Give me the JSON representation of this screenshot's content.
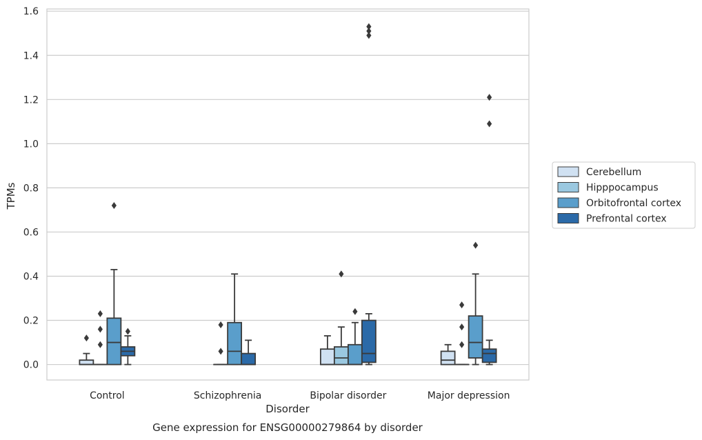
{
  "chart_data": {
    "type": "boxplot",
    "title": "Gene expression for ENSG00000279864 by disorder",
    "xlabel": "Disorder",
    "ylabel": "TPMs",
    "categories": [
      "Control",
      "Schizophrenia",
      "Bipolar disorder",
      "Major depression"
    ],
    "ylim": [
      -0.07,
      1.61
    ],
    "yticks": [
      0.0,
      0.2,
      0.4,
      0.6,
      0.8,
      1.0,
      1.2,
      1.4,
      1.6
    ],
    "ytick_labels": [
      "0.0",
      "0.2",
      "0.4",
      "0.6",
      "0.8",
      "1.0",
      "1.2",
      "1.4",
      "1.6"
    ],
    "grid": "horizontal",
    "legend_position": "right",
    "series": [
      {
        "name": "Cerebellum",
        "color": "#d0e1f2",
        "boxes": [
          {
            "q1": 0.0,
            "median": 0.0,
            "q3": 0.02,
            "whisker_low": 0.0,
            "whisker_high": 0.05,
            "outliers": [
              0.12
            ]
          },
          null,
          {
            "q1": 0.0,
            "median": 0.0,
            "q3": 0.07,
            "whisker_low": 0.0,
            "whisker_high": 0.13,
            "outliers": []
          },
          {
            "q1": 0.0,
            "median": 0.02,
            "q3": 0.06,
            "whisker_low": 0.0,
            "whisker_high": 0.09,
            "outliers": []
          }
        ]
      },
      {
        "name": "Hipppocampus",
        "color": "#9ac8e0",
        "boxes": [
          {
            "q1": 0.0,
            "median": 0.0,
            "q3": 0.0,
            "whisker_low": 0.0,
            "whisker_high": 0.0,
            "outliers": [
              0.09,
              0.16,
              0.23
            ]
          },
          {
            "q1": 0.0,
            "median": 0.0,
            "q3": 0.0,
            "whisker_low": 0.0,
            "whisker_high": 0.0,
            "outliers": [
              0.06,
              0.18
            ]
          },
          {
            "q1": 0.0,
            "median": 0.03,
            "q3": 0.08,
            "whisker_low": 0.0,
            "whisker_high": 0.17,
            "outliers": [
              0.41
            ]
          },
          {
            "q1": 0.0,
            "median": 0.0,
            "q3": 0.0,
            "whisker_low": 0.0,
            "whisker_high": 0.0,
            "outliers": [
              0.09,
              0.17,
              0.27
            ]
          }
        ]
      },
      {
        "name": "Orbitofrontal cortex",
        "color": "#5a9ecb",
        "boxes": [
          {
            "q1": 0.0,
            "median": 0.1,
            "q3": 0.21,
            "whisker_low": 0.0,
            "whisker_high": 0.43,
            "outliers": [
              0.72
            ]
          },
          {
            "q1": 0.0,
            "median": 0.06,
            "q3": 0.19,
            "whisker_low": 0.0,
            "whisker_high": 0.41,
            "outliers": []
          },
          {
            "q1": 0.0,
            "median": 0.0,
            "q3": 0.09,
            "whisker_low": 0.0,
            "whisker_high": 0.19,
            "outliers": [
              0.24
            ]
          },
          {
            "q1": 0.03,
            "median": 0.1,
            "q3": 0.22,
            "whisker_low": 0.0,
            "whisker_high": 0.41,
            "outliers": [
              0.54
            ]
          }
        ]
      },
      {
        "name": "Prefrontal cortex",
        "color": "#2b6aa8",
        "boxes": [
          {
            "q1": 0.04,
            "median": 0.06,
            "q3": 0.08,
            "whisker_low": 0.0,
            "whisker_high": 0.13,
            "outliers": [
              0.15
            ]
          },
          {
            "q1": 0.0,
            "median": 0.0,
            "q3": 0.05,
            "whisker_low": 0.0,
            "whisker_high": 0.11,
            "outliers": []
          },
          {
            "q1": 0.01,
            "median": 0.05,
            "q3": 0.2,
            "whisker_low": 0.0,
            "whisker_high": 0.23,
            "outliers": [
              1.49,
              1.51,
              1.53
            ]
          },
          {
            "q1": 0.01,
            "median": 0.05,
            "q3": 0.07,
            "whisker_low": 0.0,
            "whisker_high": 0.11,
            "outliers": [
              1.09,
              1.21
            ]
          }
        ]
      }
    ]
  }
}
